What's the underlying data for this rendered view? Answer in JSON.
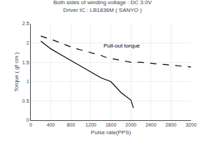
{
  "chart_data": {
    "type": "line",
    "title": "Both sides of winding voltage : DC 3.0V",
    "subtitle": "Driver IC : LB1836M ( SANYO )",
    "xlabel": "Pulse rate(PPS)",
    "ylabel": "Torque ( gf·cm )",
    "xlim": [
      0,
      3200
    ],
    "ylim": [
      0,
      2.5
    ],
    "xticks": [
      0,
      400,
      800,
      1200,
      1600,
      2000,
      2400,
      2800,
      3200
    ],
    "yticks": [
      0,
      0.5,
      1,
      1.5,
      2,
      2.5
    ],
    "grid": true,
    "series": [
      {
        "color": "#000000",
        "line_style": "dashed",
        "x": [
          200,
          400,
          600,
          800,
          1000,
          1200,
          1300,
          1400,
          1500,
          1600,
          1700,
          1800,
          1900,
          2000,
          2200,
          2400,
          2600,
          2800,
          3000,
          3200
        ],
        "values": [
          2.18,
          2.1,
          2.0,
          1.9,
          1.82,
          1.75,
          1.72,
          1.68,
          1.63,
          1.6,
          1.57,
          1.55,
          1.53,
          1.5,
          1.5,
          1.47,
          1.45,
          1.43,
          1.4,
          1.38
        ]
      },
      {
        "color": "#000000",
        "line_style": "solid",
        "x": [
          200,
          400,
          600,
          800,
          1000,
          1200,
          1400,
          1600,
          1800,
          2000,
          2050
        ],
        "values": [
          2.05,
          1.85,
          1.7,
          1.55,
          1.4,
          1.25,
          1.1,
          1.0,
          0.72,
          0.52,
          0.32
        ]
      }
    ],
    "annotations": [
      {
        "text": "Pull-out torque",
        "x": 1430,
        "y": 1.82,
        "color": "#000000"
      }
    ]
  }
}
